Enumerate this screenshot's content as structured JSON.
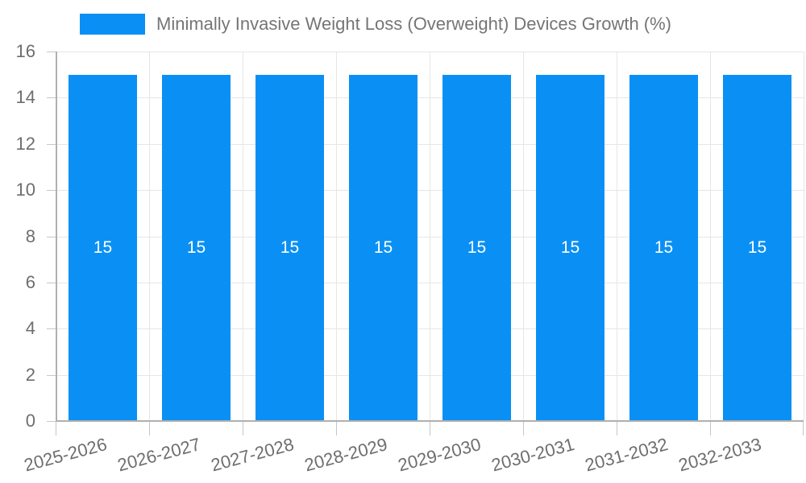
{
  "legend": {
    "label": "Minimally Invasive Weight Loss (Overweight) Devices Growth (%)"
  },
  "chart_data": {
    "type": "bar",
    "title": "Minimally Invasive Weight Loss (Overweight) Devices Growth (%)",
    "categories": [
      "2025-2026",
      "2026-2027",
      "2027-2028",
      "2028-2029",
      "2029-2030",
      "2030-2031",
      "2031-2032",
      "2032-2033"
    ],
    "values": [
      15,
      15,
      15,
      15,
      15,
      15,
      15,
      15
    ],
    "bar_value_labels": [
      "15",
      "15",
      "15",
      "15",
      "15",
      "15",
      "15",
      "15"
    ],
    "xlabel": "",
    "ylabel": "",
    "ylim": [
      0,
      16
    ],
    "ytick_step": 2,
    "ytick_labels": [
      "0",
      "2",
      "4",
      "6",
      "8",
      "10",
      "12",
      "14",
      "16"
    ],
    "grid": true,
    "legend_position": "top-left",
    "colors": {
      "bar": "#0A90F5",
      "grid": "#e6e6e6",
      "axis": "#b0b0b0",
      "tick_mark": "#c6c6c6",
      "tick_text": "#6e6e6e",
      "legend_text": "#757575",
      "bar_label_text": "#ffffff",
      "background": "#ffffff"
    }
  }
}
